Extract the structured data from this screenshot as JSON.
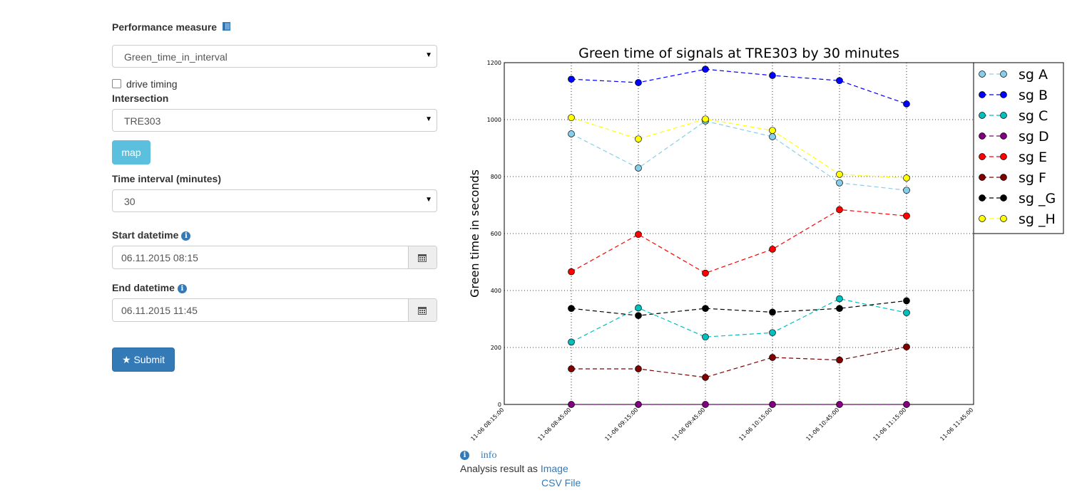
{
  "form": {
    "performance_measure": {
      "label": "Performance measure",
      "value": "Green_time_in_interval"
    },
    "drive_timing_label": "drive timing",
    "intersection": {
      "label": "Intersection",
      "value": "TRE303"
    },
    "map_button": "map",
    "time_interval": {
      "label": "Time interval (minutes)",
      "value": "30"
    },
    "start_datetime": {
      "label": "Start datetime",
      "value": "06.11.2015 08:15"
    },
    "end_datetime": {
      "label": "End datetime",
      "value": "06.11.2015 11:45"
    },
    "submit_button": "Submit"
  },
  "footer": {
    "info_link": "info",
    "analysis_prefix": "Analysis result as",
    "image_link": "Image",
    "csv_link": "CSV File"
  },
  "chart_data": {
    "type": "line",
    "title": "Green time of signals  at TRE303 by 30 minutes",
    "ylabel": "Green time in seconds",
    "xlabel": "",
    "ylim": [
      0,
      1200
    ],
    "yticks": [
      "0",
      "200",
      "400",
      "600",
      "800",
      "1000",
      "1200"
    ],
    "x_ticks": [
      "11-06 08:15:00",
      "11-06 08:45:00",
      "11-06 09:15:00",
      "11-06 09:45:00",
      "11-06 10:15:00",
      "11-06 10:45:00",
      "11-06 11:15:00",
      "11-06 11:45:00"
    ],
    "x": [
      "11-06 08:45:00",
      "11-06 09:15:00",
      "11-06 09:45:00",
      "11-06 10:15:00",
      "11-06 10:45:00",
      "11-06 11:15:00"
    ],
    "grid": true,
    "legend_position": "right",
    "series": [
      {
        "name": "sg A",
        "color": "#87ceeb",
        "values": [
          950,
          830,
          995,
          940,
          778,
          752
        ]
      },
      {
        "name": "sg B",
        "color": "#0000ff",
        "values": [
          1142,
          1130,
          1177,
          1155,
          1137,
          1055
        ]
      },
      {
        "name": "sg C",
        "color": "#00bfbf",
        "values": [
          219,
          339,
          237,
          252,
          371,
          322
        ]
      },
      {
        "name": "sg D",
        "color": "#800080",
        "values": [
          0,
          0,
          0,
          0,
          0,
          0
        ]
      },
      {
        "name": "sg E",
        "color": "#ff0000",
        "values": [
          466,
          597,
          461,
          545,
          684,
          662
        ]
      },
      {
        "name": "sg F",
        "color": "#800000",
        "values": [
          125,
          125,
          95,
          165,
          156,
          202
        ]
      },
      {
        "name": "sg _G",
        "color": "#000000",
        "values": [
          337,
          312,
          337,
          324,
          337,
          364
        ]
      },
      {
        "name": "sg _H",
        "color": "#ffff00",
        "values": [
          1007,
          932,
          1002,
          962,
          808,
          795
        ]
      }
    ]
  }
}
